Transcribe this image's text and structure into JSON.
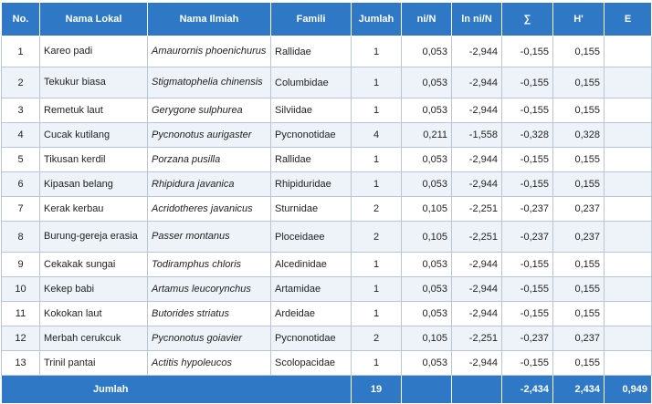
{
  "headers": {
    "no": "No.",
    "nama_lokal": "Nama Lokal",
    "nama_ilmiah": "Nama Ilmiah",
    "famili": "Famili",
    "jumlah": "Jumlah",
    "ni_n": "ni/N",
    "ln_ni_n": "ln ni/N",
    "sigma": "∑",
    "h": "H'",
    "e": "E"
  },
  "rows": [
    {
      "no": "1",
      "lokal": "Kareo padi",
      "ilmiah": "Amaurornis phoenichurus",
      "famili": "Rallidae",
      "jumlah": "1",
      "ni": "0,053",
      "ln": "-2,944",
      "sig": "-0,155",
      "h": "0,155"
    },
    {
      "no": "2",
      "lokal": "Tekukur biasa",
      "ilmiah": "Stigmatophelia chinensis",
      "famili": "Columbidae",
      "jumlah": "1",
      "ni": "0,053",
      "ln": "-2,944",
      "sig": "-0,155",
      "h": "0,155"
    },
    {
      "no": "3",
      "lokal": "Remetuk laut",
      "ilmiah": "Gerygone sulphurea",
      "famili": "Silviidae",
      "jumlah": "1",
      "ni": "0,053",
      "ln": "-2,944",
      "sig": "-0,155",
      "h": "0,155"
    },
    {
      "no": "4",
      "lokal": "Cucak kutilang",
      "ilmiah": "Pycnonotus aurigaster",
      "famili": "Pycnonotidae",
      "jumlah": "4",
      "ni": "0,211",
      "ln": "-1,558",
      "sig": "-0,328",
      "h": "0,328"
    },
    {
      "no": "5",
      "lokal": "Tikusan kerdil",
      "ilmiah": "Porzana pusilla",
      "famili": "Rallidae",
      "jumlah": "1",
      "ni": "0,053",
      "ln": "-2,944",
      "sig": "-0,155",
      "h": "0,155"
    },
    {
      "no": "6",
      "lokal": "Kipasan belang",
      "ilmiah": "Rhipidura javanica",
      "famili": "Rhipiduridae",
      "jumlah": "1",
      "ni": "0,053",
      "ln": "-2,944",
      "sig": "-0,155",
      "h": "0,155"
    },
    {
      "no": "7",
      "lokal": "Kerak kerbau",
      "ilmiah": "Acridotheres javanicus",
      "famili": "Sturnidae",
      "jumlah": "2",
      "ni": "0,105",
      "ln": "-2,251",
      "sig": "-0,237",
      "h": "0,237"
    },
    {
      "no": "8",
      "lokal": "Burung-gereja erasia",
      "ilmiah": "Passer montanus",
      "famili": "Ploceidaee",
      "jumlah": "2",
      "ni": "0,105",
      "ln": "-2,251",
      "sig": "-0,237",
      "h": "0,237"
    },
    {
      "no": "9",
      "lokal": "Cekakak sungai",
      "ilmiah": "Todiramphus chloris",
      "famili": "Alcedinidae",
      "jumlah": "1",
      "ni": "0,053",
      "ln": "-2,944",
      "sig": "-0,155",
      "h": "0,155"
    },
    {
      "no": "10",
      "lokal": "Kekep babi",
      "ilmiah": "Artamus leucorynchus",
      "famili": "Artamidae",
      "jumlah": "1",
      "ni": "0,053",
      "ln": "-2,944",
      "sig": "-0,155",
      "h": "0,155"
    },
    {
      "no": "11",
      "lokal": "Kokokan laut",
      "ilmiah": "Butorides striatus",
      "famili": "Ardeidae",
      "jumlah": "1",
      "ni": "0,053",
      "ln": "-2,944",
      "sig": "-0,155",
      "h": "0,155"
    },
    {
      "no": "12",
      "lokal": "Merbah cerukcuk",
      "ilmiah": "Pycnonotus goiavier",
      "famili": "Pycnonotidae",
      "jumlah": "2",
      "ni": "0,105",
      "ln": "-2,251",
      "sig": "-0,237",
      "h": "0,237"
    },
    {
      "no": "13",
      "lokal": "Trinil pantai",
      "ilmiah": "Actitis hypoleucos",
      "famili": "Scolopacidae",
      "jumlah": "1",
      "ni": "0,053",
      "ln": "-2,944",
      "sig": "-0,155",
      "h": "0,155"
    }
  ],
  "footer": {
    "label": "Jumlah",
    "jumlah": "19",
    "sigma": "-2,434",
    "h": "2,434",
    "e": "0,949"
  },
  "colors": {
    "header_bg": "#2e78c6",
    "stripe_bg": "#eef3fa"
  }
}
